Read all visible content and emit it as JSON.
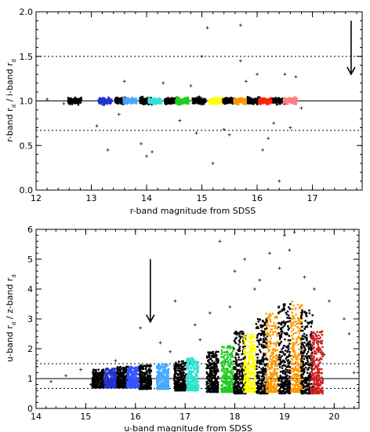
{
  "chart_data": [
    {
      "type": "scatter",
      "title": "",
      "xlabel": "r-band magnitude from SDSS",
      "ylabel": "r-band r_d / i-band r_d",
      "ylabel_main": "r-band r",
      "ylabel_mid": " / i-band r",
      "ylabel_sub": "d",
      "xlim": [
        12,
        17.9
      ],
      "ylim": [
        0,
        2
      ],
      "xticks": [
        12,
        13,
        14,
        15,
        16,
        17
      ],
      "xtick_labels": [
        "12",
        "13",
        "14",
        "15",
        "16",
        "17"
      ],
      "yticks": [
        0,
        0.5,
        1,
        1.5,
        2
      ],
      "ytick_labels": [
        "0.0",
        "0.5",
        "1.0",
        "1.5",
        "2.0"
      ],
      "reference_lines": [
        {
          "y": 1.0,
          "style": "solid"
        },
        {
          "y": 1.5,
          "style": "dashed"
        },
        {
          "y": 0.67,
          "style": "dashed"
        }
      ],
      "arrow": {
        "x": 17.7,
        "y_from": 1.9,
        "y_to": 1.3
      },
      "bins": [
        {
          "x": 12.7,
          "y": 1.0,
          "color": "#000000"
        },
        {
          "x": 13.25,
          "y": 1.0,
          "color": "#2233cc"
        },
        {
          "x": 13.55,
          "y": 1.0,
          "color": "#000000"
        },
        {
          "x": 13.7,
          "y": 1.0,
          "color": "#44aaff"
        },
        {
          "x": 14.0,
          "y": 1.0,
          "color": "#000000"
        },
        {
          "x": 14.15,
          "y": 1.0,
          "color": "#33e0d0"
        },
        {
          "x": 14.45,
          "y": 1.0,
          "color": "#000000"
        },
        {
          "x": 14.65,
          "y": 1.0,
          "color": "#22cc22"
        },
        {
          "x": 14.95,
          "y": 1.0,
          "color": "#000000"
        },
        {
          "x": 15.25,
          "y": 1.0,
          "color": "#ffff00"
        },
        {
          "x": 15.5,
          "y": 1.0,
          "color": "#000000"
        },
        {
          "x": 15.7,
          "y": 1.0,
          "color": "#ff9900"
        },
        {
          "x": 15.95,
          "y": 1.0,
          "color": "#000000"
        },
        {
          "x": 16.15,
          "y": 1.0,
          "color": "#ff2200"
        },
        {
          "x": 16.4,
          "y": 1.0,
          "color": "#000000"
        },
        {
          "x": 16.6,
          "y": 1.0,
          "color": "#ff8080"
        }
      ],
      "outliers": [
        [
          12.2,
          1.02
        ],
        [
          12.5,
          0.97
        ],
        [
          13.1,
          0.72
        ],
        [
          13.3,
          0.45
        ],
        [
          13.6,
          1.22
        ],
        [
          13.9,
          0.52
        ],
        [
          14.0,
          0.38
        ],
        [
          14.1,
          0.43
        ],
        [
          14.3,
          1.2
        ],
        [
          14.6,
          0.78
        ],
        [
          14.9,
          0.64
        ],
        [
          15.1,
          1.82
        ],
        [
          15.0,
          1.5
        ],
        [
          15.2,
          0.3
        ],
        [
          15.5,
          0.62
        ],
        [
          15.7,
          1.85
        ],
        [
          15.7,
          1.45
        ],
        [
          16.0,
          1.3
        ],
        [
          16.2,
          0.58
        ],
        [
          16.3,
          0.75
        ],
        [
          16.4,
          0.1
        ],
        [
          16.5,
          1.3
        ],
        [
          16.6,
          0.7
        ],
        [
          16.8,
          0.92
        ],
        [
          15.8,
          1.22
        ],
        [
          16.1,
          0.45
        ],
        [
          14.8,
          1.17
        ],
        [
          15.4,
          0.68
        ],
        [
          16.7,
          1.27
        ],
        [
          13.5,
          0.85
        ]
      ]
    },
    {
      "type": "scatter",
      "title": "",
      "xlabel": "u-band magnitude from SDSS",
      "ylabel": "u-band r_d / z-band r_d",
      "ylabel_main": "u-band r",
      "ylabel_mid": " / z-band r",
      "ylabel_sub": "d",
      "xlim": [
        14,
        20.5
      ],
      "ylim": [
        0,
        6
      ],
      "xticks": [
        14,
        15,
        16,
        17,
        18,
        19,
        20
      ],
      "xtick_labels": [
        "14",
        "15",
        "16",
        "17",
        "18",
        "19",
        "20"
      ],
      "yticks": [
        0,
        1,
        2,
        3,
        4,
        5,
        6
      ],
      "ytick_labels": [
        "0",
        "1",
        "2",
        "3",
        "4",
        "5",
        "6"
      ],
      "reference_lines": [
        {
          "y": 1.0,
          "style": "solid"
        },
        {
          "y": 1.5,
          "style": "dashed"
        },
        {
          "y": 0.67,
          "style": "dashed"
        }
      ],
      "arrow": {
        "x": 16.3,
        "y_from": 5.0,
        "y_to": 2.9
      },
      "bins": [
        {
          "x": 15.25,
          "y_low": 0.7,
          "y_high": 1.3,
          "color": "#000000"
        },
        {
          "x": 15.5,
          "y_low": 0.7,
          "y_high": 1.35,
          "color": "#2233cc"
        },
        {
          "x": 15.75,
          "y_low": 0.7,
          "y_high": 1.4,
          "color": "#000000"
        },
        {
          "x": 15.95,
          "y_low": 0.7,
          "y_high": 1.4,
          "color": "#3355ff"
        },
        {
          "x": 16.2,
          "y_low": 0.65,
          "y_high": 1.45,
          "color": "#000000"
        },
        {
          "x": 16.55,
          "y_low": 0.65,
          "y_high": 1.5,
          "color": "#44aaff"
        },
        {
          "x": 16.9,
          "y_low": 0.6,
          "y_high": 1.6,
          "color": "#000000"
        },
        {
          "x": 17.15,
          "y_low": 0.6,
          "y_high": 1.7,
          "color": "#33e0d0"
        },
        {
          "x": 17.55,
          "y_low": 0.55,
          "y_high": 1.9,
          "color": "#000000"
        },
        {
          "x": 17.85,
          "y_low": 0.55,
          "y_high": 2.1,
          "color": "#22cc22"
        },
        {
          "x": 18.1,
          "y_low": 0.5,
          "y_high": 2.6,
          "color": "#000000"
        },
        {
          "x": 18.3,
          "y_low": 0.55,
          "y_high": 2.5,
          "color": "#ffff00"
        },
        {
          "x": 18.55,
          "y_low": 0.5,
          "y_high": 3.0,
          "color": "#000000"
        },
        {
          "x": 18.75,
          "y_low": 0.55,
          "y_high": 3.2,
          "color": "#ff9900"
        },
        {
          "x": 19.0,
          "y_low": 0.5,
          "y_high": 3.5,
          "color": "#000000"
        },
        {
          "x": 19.25,
          "y_low": 0.55,
          "y_high": 3.6,
          "color": "#ff9900"
        },
        {
          "x": 19.45,
          "y_low": 0.5,
          "y_high": 3.3,
          "color": "#000000"
        },
        {
          "x": 19.65,
          "y_low": 0.5,
          "y_high": 2.6,
          "color": "#cc2222"
        }
      ],
      "outliers": [
        [
          14.3,
          0.9
        ],
        [
          14.6,
          1.1
        ],
        [
          14.9,
          1.3
        ],
        [
          15.1,
          0.8
        ],
        [
          16.1,
          2.7
        ],
        [
          16.5,
          2.2
        ],
        [
          16.8,
          3.6
        ],
        [
          17.2,
          2.8
        ],
        [
          17.5,
          3.2
        ],
        [
          17.7,
          5.6
        ],
        [
          18.0,
          4.6
        ],
        [
          18.2,
          5.0
        ],
        [
          18.4,
          4.0
        ],
        [
          18.7,
          5.2
        ],
        [
          18.9,
          4.7
        ],
        [
          19.0,
          5.8
        ],
        [
          19.2,
          5.9
        ],
        [
          19.4,
          4.4
        ],
        [
          19.6,
          4.0
        ],
        [
          19.9,
          3.6
        ],
        [
          20.2,
          3.0
        ],
        [
          20.4,
          1.2
        ],
        [
          20.3,
          2.5
        ],
        [
          19.8,
          1.8
        ],
        [
          16.7,
          1.9
        ],
        [
          17.3,
          2.3
        ],
        [
          15.6,
          1.6
        ],
        [
          17.9,
          3.4
        ],
        [
          18.5,
          4.3
        ],
        [
          19.1,
          5.3
        ]
      ]
    }
  ]
}
